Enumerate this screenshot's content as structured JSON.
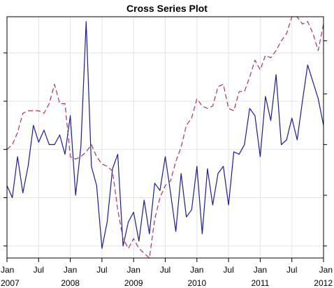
{
  "chart_data": {
    "type": "line",
    "title": "Cross Series Plot",
    "xlabel": "",
    "ylabel": "",
    "grid": true,
    "legend": "none",
    "x_range": [
      "2007-01",
      "2012-01"
    ],
    "x_ticks": [
      {
        "date": "2007-01",
        "line1": "Jan",
        "line2": "2007"
      },
      {
        "date": "2007-07",
        "line1": "Jul",
        "line2": ""
      },
      {
        "date": "2008-01",
        "line1": "Jan",
        "line2": "2008"
      },
      {
        "date": "2008-07",
        "line1": "Jul",
        "line2": ""
      },
      {
        "date": "2009-01",
        "line1": "Jan",
        "line2": "2009"
      },
      {
        "date": "2009-07",
        "line1": "Jul",
        "line2": ""
      },
      {
        "date": "2010-01",
        "line1": "Jan",
        "line2": "2010"
      },
      {
        "date": "2010-07",
        "line1": "Jul",
        "line2": ""
      },
      {
        "date": "2011-01",
        "line1": "Jan",
        "line2": "2011"
      },
      {
        "date": "2011-07",
        "line1": "Jul",
        "line2": ""
      },
      {
        "date": "2012-01",
        "line1": "Jan",
        "line2": "2012"
      }
    ],
    "left_axis": {
      "range": [
        0,
        100
      ],
      "tick_values": [
        5,
        25,
        45,
        65,
        85
      ],
      "labels_shown": false
    },
    "right_axis": {
      "range": [
        0,
        100
      ],
      "tick_values": [
        5,
        26,
        47,
        68,
        90
      ],
      "labels_shown": false
    },
    "series": [
      {
        "axis": "left",
        "color": "#1a1aa6",
        "style": "solid",
        "values": [
          [
            "2007-01",
            30
          ],
          [
            "2007-02",
            25
          ],
          [
            "2007-03",
            42
          ],
          [
            "2007-04",
            27
          ],
          [
            "2007-05",
            38
          ],
          [
            "2007-06",
            55
          ],
          [
            "2007-07",
            48
          ],
          [
            "2007-08",
            53
          ],
          [
            "2007-09",
            47
          ],
          [
            "2007-10",
            47
          ],
          [
            "2007-11",
            51
          ],
          [
            "2007-12",
            43
          ],
          [
            "2008-01",
            59
          ],
          [
            "2008-02",
            26
          ],
          [
            "2008-03",
            46
          ],
          [
            "2008-04",
            98
          ],
          [
            "2008-05",
            38
          ],
          [
            "2008-06",
            30
          ],
          [
            "2008-07",
            4
          ],
          [
            "2008-08",
            15
          ],
          [
            "2008-09",
            37
          ],
          [
            "2008-10",
            43
          ],
          [
            "2008-11",
            5
          ],
          [
            "2008-12",
            15
          ],
          [
            "2009-01",
            19
          ],
          [
            "2009-02",
            7
          ],
          [
            "2009-03",
            24
          ],
          [
            "2009-04",
            10
          ],
          [
            "2009-05",
            31
          ],
          [
            "2009-06",
            28
          ],
          [
            "2009-07",
            42
          ],
          [
            "2009-08",
            27
          ],
          [
            "2009-09",
            11
          ],
          [
            "2009-10",
            35
          ],
          [
            "2009-11",
            17
          ],
          [
            "2009-12",
            20
          ],
          [
            "2010-01",
            38
          ],
          [
            "2010-02",
            10
          ],
          [
            "2010-03",
            37
          ],
          [
            "2010-04",
            22
          ],
          [
            "2010-05",
            35
          ],
          [
            "2010-06",
            38
          ],
          [
            "2010-07",
            22
          ],
          [
            "2010-08",
            44
          ],
          [
            "2010-09",
            43
          ],
          [
            "2010-10",
            47
          ],
          [
            "2010-11",
            62
          ],
          [
            "2010-12",
            59
          ],
          [
            "2011-01",
            42
          ],
          [
            "2011-02",
            67
          ],
          [
            "2011-03",
            57
          ],
          [
            "2011-04",
            76
          ],
          [
            "2011-05",
            47
          ],
          [
            "2011-06",
            49
          ],
          [
            "2011-07",
            58
          ],
          [
            "2011-08",
            49
          ],
          [
            "2011-09",
            65
          ],
          [
            "2011-10",
            80
          ],
          [
            "2011-11",
            73
          ],
          [
            "2011-12",
            66
          ],
          [
            "2012-01",
            55
          ]
        ]
      },
      {
        "axis": "right",
        "color": "#b03060",
        "style": "dashed",
        "values": [
          [
            "2007-01",
            45
          ],
          [
            "2007-02",
            47
          ],
          [
            "2007-03",
            52
          ],
          [
            "2007-04",
            60
          ],
          [
            "2007-05",
            61
          ],
          [
            "2007-06",
            61
          ],
          [
            "2007-07",
            61
          ],
          [
            "2007-08",
            60
          ],
          [
            "2007-09",
            64
          ],
          [
            "2007-10",
            72
          ],
          [
            "2007-11",
            64
          ],
          [
            "2007-12",
            64
          ],
          [
            "2008-01",
            42
          ],
          [
            "2008-02",
            41
          ],
          [
            "2008-03",
            42
          ],
          [
            "2008-04",
            44
          ],
          [
            "2008-05",
            47
          ],
          [
            "2008-06",
            42
          ],
          [
            "2008-07",
            39
          ],
          [
            "2008-08",
            38
          ],
          [
            "2008-09",
            36
          ],
          [
            "2008-10",
            20
          ],
          [
            "2008-11",
            8
          ],
          [
            "2008-12",
            4
          ],
          [
            "2009-01",
            8
          ],
          [
            "2009-02",
            4
          ],
          [
            "2009-03",
            2
          ],
          [
            "2009-04",
            0
          ],
          [
            "2009-05",
            16
          ],
          [
            "2009-06",
            25
          ],
          [
            "2009-07",
            30
          ],
          [
            "2009-08",
            32
          ],
          [
            "2009-09",
            40
          ],
          [
            "2009-10",
            46
          ],
          [
            "2009-11",
            55
          ],
          [
            "2009-12",
            58
          ],
          [
            "2010-01",
            66
          ],
          [
            "2010-02",
            63
          ],
          [
            "2010-03",
            62
          ],
          [
            "2010-04",
            63
          ],
          [
            "2010-05",
            71
          ],
          [
            "2010-06",
            72
          ],
          [
            "2010-07",
            62
          ],
          [
            "2010-08",
            61
          ],
          [
            "2010-09",
            69
          ],
          [
            "2010-10",
            69
          ],
          [
            "2010-11",
            75
          ],
          [
            "2010-12",
            82
          ],
          [
            "2011-01",
            78
          ],
          [
            "2011-02",
            84
          ],
          [
            "2011-03",
            83
          ],
          [
            "2011-04",
            86
          ],
          [
            "2011-05",
            90
          ],
          [
            "2011-06",
            93
          ],
          [
            "2011-07",
            100
          ],
          [
            "2011-08",
            100
          ],
          [
            "2011-09",
            97
          ],
          [
            "2011-10",
            98
          ],
          [
            "2011-11",
            93
          ],
          [
            "2011-12",
            86
          ],
          [
            "2012-01",
            97
          ]
        ]
      }
    ]
  }
}
